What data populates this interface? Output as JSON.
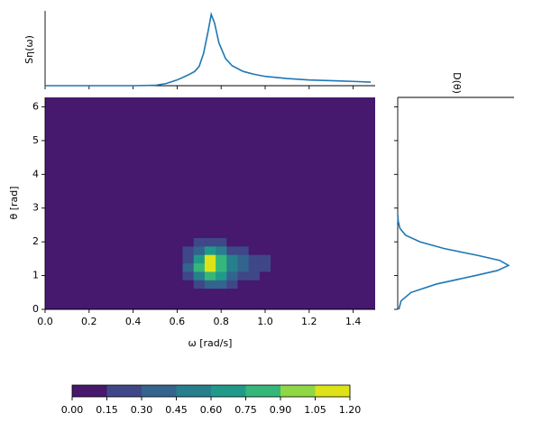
{
  "chart_data": [
    {
      "type": "line",
      "ylabel": "Sη(ω)",
      "color": "#1f77b4",
      "x": [
        0,
        0.4,
        0.5,
        0.55,
        0.6,
        0.65,
        0.68,
        0.7,
        0.72,
        0.74,
        0.755,
        0.77,
        0.79,
        0.82,
        0.85,
        0.9,
        0.95,
        1.0,
        1.1,
        1.2,
        1.3,
        1.4,
        1.48
      ],
      "values": [
        0,
        0,
        0.005,
        0.03,
        0.08,
        0.15,
        0.2,
        0.27,
        0.45,
        0.75,
        1.0,
        0.88,
        0.6,
        0.38,
        0.28,
        0.2,
        0.16,
        0.13,
        0.1,
        0.08,
        0.07,
        0.06,
        0.05
      ],
      "xlim": [
        0,
        1.5
      ],
      "ylim": [
        0,
        1.05
      ],
      "xticks": [
        0,
        0.2,
        0.4,
        0.6,
        0.8,
        1.0,
        1.2,
        1.4
      ]
    },
    {
      "type": "contour",
      "xlabel": "ω [rad/s]",
      "ylabel": "θ [rad]",
      "x": [
        0.55,
        0.6,
        0.65,
        0.7,
        0.75,
        0.8,
        0.85,
        0.9,
        0.95,
        1.0,
        1.05,
        1.1
      ],
      "y": [
        0.5,
        0.75,
        1.0,
        1.25,
        1.5,
        1.75,
        2.0,
        2.25
      ],
      "z": [
        [
          0.0,
          0.01,
          0.04,
          0.09,
          0.14,
          0.11,
          0.06,
          0.04,
          0.03,
          0.02,
          0.02,
          0.01
        ],
        [
          0.0,
          0.03,
          0.11,
          0.29,
          0.44,
          0.33,
          0.2,
          0.13,
          0.09,
          0.07,
          0.05,
          0.04
        ],
        [
          0.01,
          0.05,
          0.22,
          0.58,
          0.89,
          0.67,
          0.4,
          0.27,
          0.18,
          0.13,
          0.11,
          0.08
        ],
        [
          0.01,
          0.07,
          0.3,
          0.77,
          1.19,
          0.89,
          0.53,
          0.36,
          0.24,
          0.18,
          0.14,
          0.11
        ],
        [
          0.01,
          0.06,
          0.26,
          0.69,
          1.06,
          0.79,
          0.48,
          0.32,
          0.21,
          0.16,
          0.13,
          0.1
        ],
        [
          0.01,
          0.04,
          0.15,
          0.4,
          0.61,
          0.46,
          0.28,
          0.18,
          0.12,
          0.09,
          0.07,
          0.06
        ],
        [
          0.0,
          0.01,
          0.06,
          0.16,
          0.24,
          0.18,
          0.11,
          0.07,
          0.05,
          0.04,
          0.03,
          0.02
        ],
        [
          0.0,
          0.0,
          0.02,
          0.04,
          0.06,
          0.05,
          0.03,
          0.02,
          0.01,
          0.01,
          0.01,
          0.01
        ]
      ],
      "levels": [
        {
          "value": 0,
          "label": "0.00"
        },
        {
          "value": 0.15,
          "label": "0.15"
        },
        {
          "value": 0.3,
          "label": "0.30"
        },
        {
          "value": 0.45,
          "label": "0.45"
        },
        {
          "value": 0.6,
          "label": "0.60"
        },
        {
          "value": 0.75,
          "label": "0.75"
        },
        {
          "value": 0.9,
          "label": "0.90"
        },
        {
          "value": 1.05,
          "label": "1.05"
        },
        {
          "value": 1.2,
          "label": "1.20"
        }
      ],
      "colors": [
        "#46186e",
        "#3f4788",
        "#32648e",
        "#277f8e",
        "#1f9a8a",
        "#35b779",
        "#8fd744",
        "#dde318"
      ],
      "xlim": [
        0,
        1.5
      ],
      "ylim": [
        0,
        6.28
      ],
      "xticks": [
        {
          "value": 0,
          "label": "0.0"
        },
        {
          "value": 0.2,
          "label": "0.2"
        },
        {
          "value": 0.4,
          "label": "0.4"
        },
        {
          "value": 0.6,
          "label": "0.6"
        },
        {
          "value": 0.8,
          "label": "0.8"
        },
        {
          "value": 1.0,
          "label": "1.0"
        },
        {
          "value": 1.2,
          "label": "1.2"
        },
        {
          "value": 1.4,
          "label": "1.4"
        }
      ],
      "yticks": [
        0,
        1,
        2,
        3,
        4,
        5,
        6
      ]
    },
    {
      "type": "line",
      "orientation": "vertical",
      "title": "D(θ)",
      "color": "#1f77b4",
      "y": [
        0,
        0.25,
        0.5,
        0.75,
        1.0,
        1.15,
        1.3,
        1.45,
        1.6,
        1.8,
        2.0,
        2.2,
        2.4,
        2.6,
        2.8
      ],
      "values": [
        0.01,
        0.03,
        0.12,
        0.35,
        0.7,
        0.9,
        1.0,
        0.92,
        0.72,
        0.42,
        0.2,
        0.07,
        0.02,
        0.005,
        0
      ],
      "xlim": [
        0,
        1.05
      ],
      "ylim": [
        0,
        6.28
      ],
      "yticks": [
        0,
        1,
        2,
        3,
        4,
        5,
        6
      ]
    }
  ]
}
